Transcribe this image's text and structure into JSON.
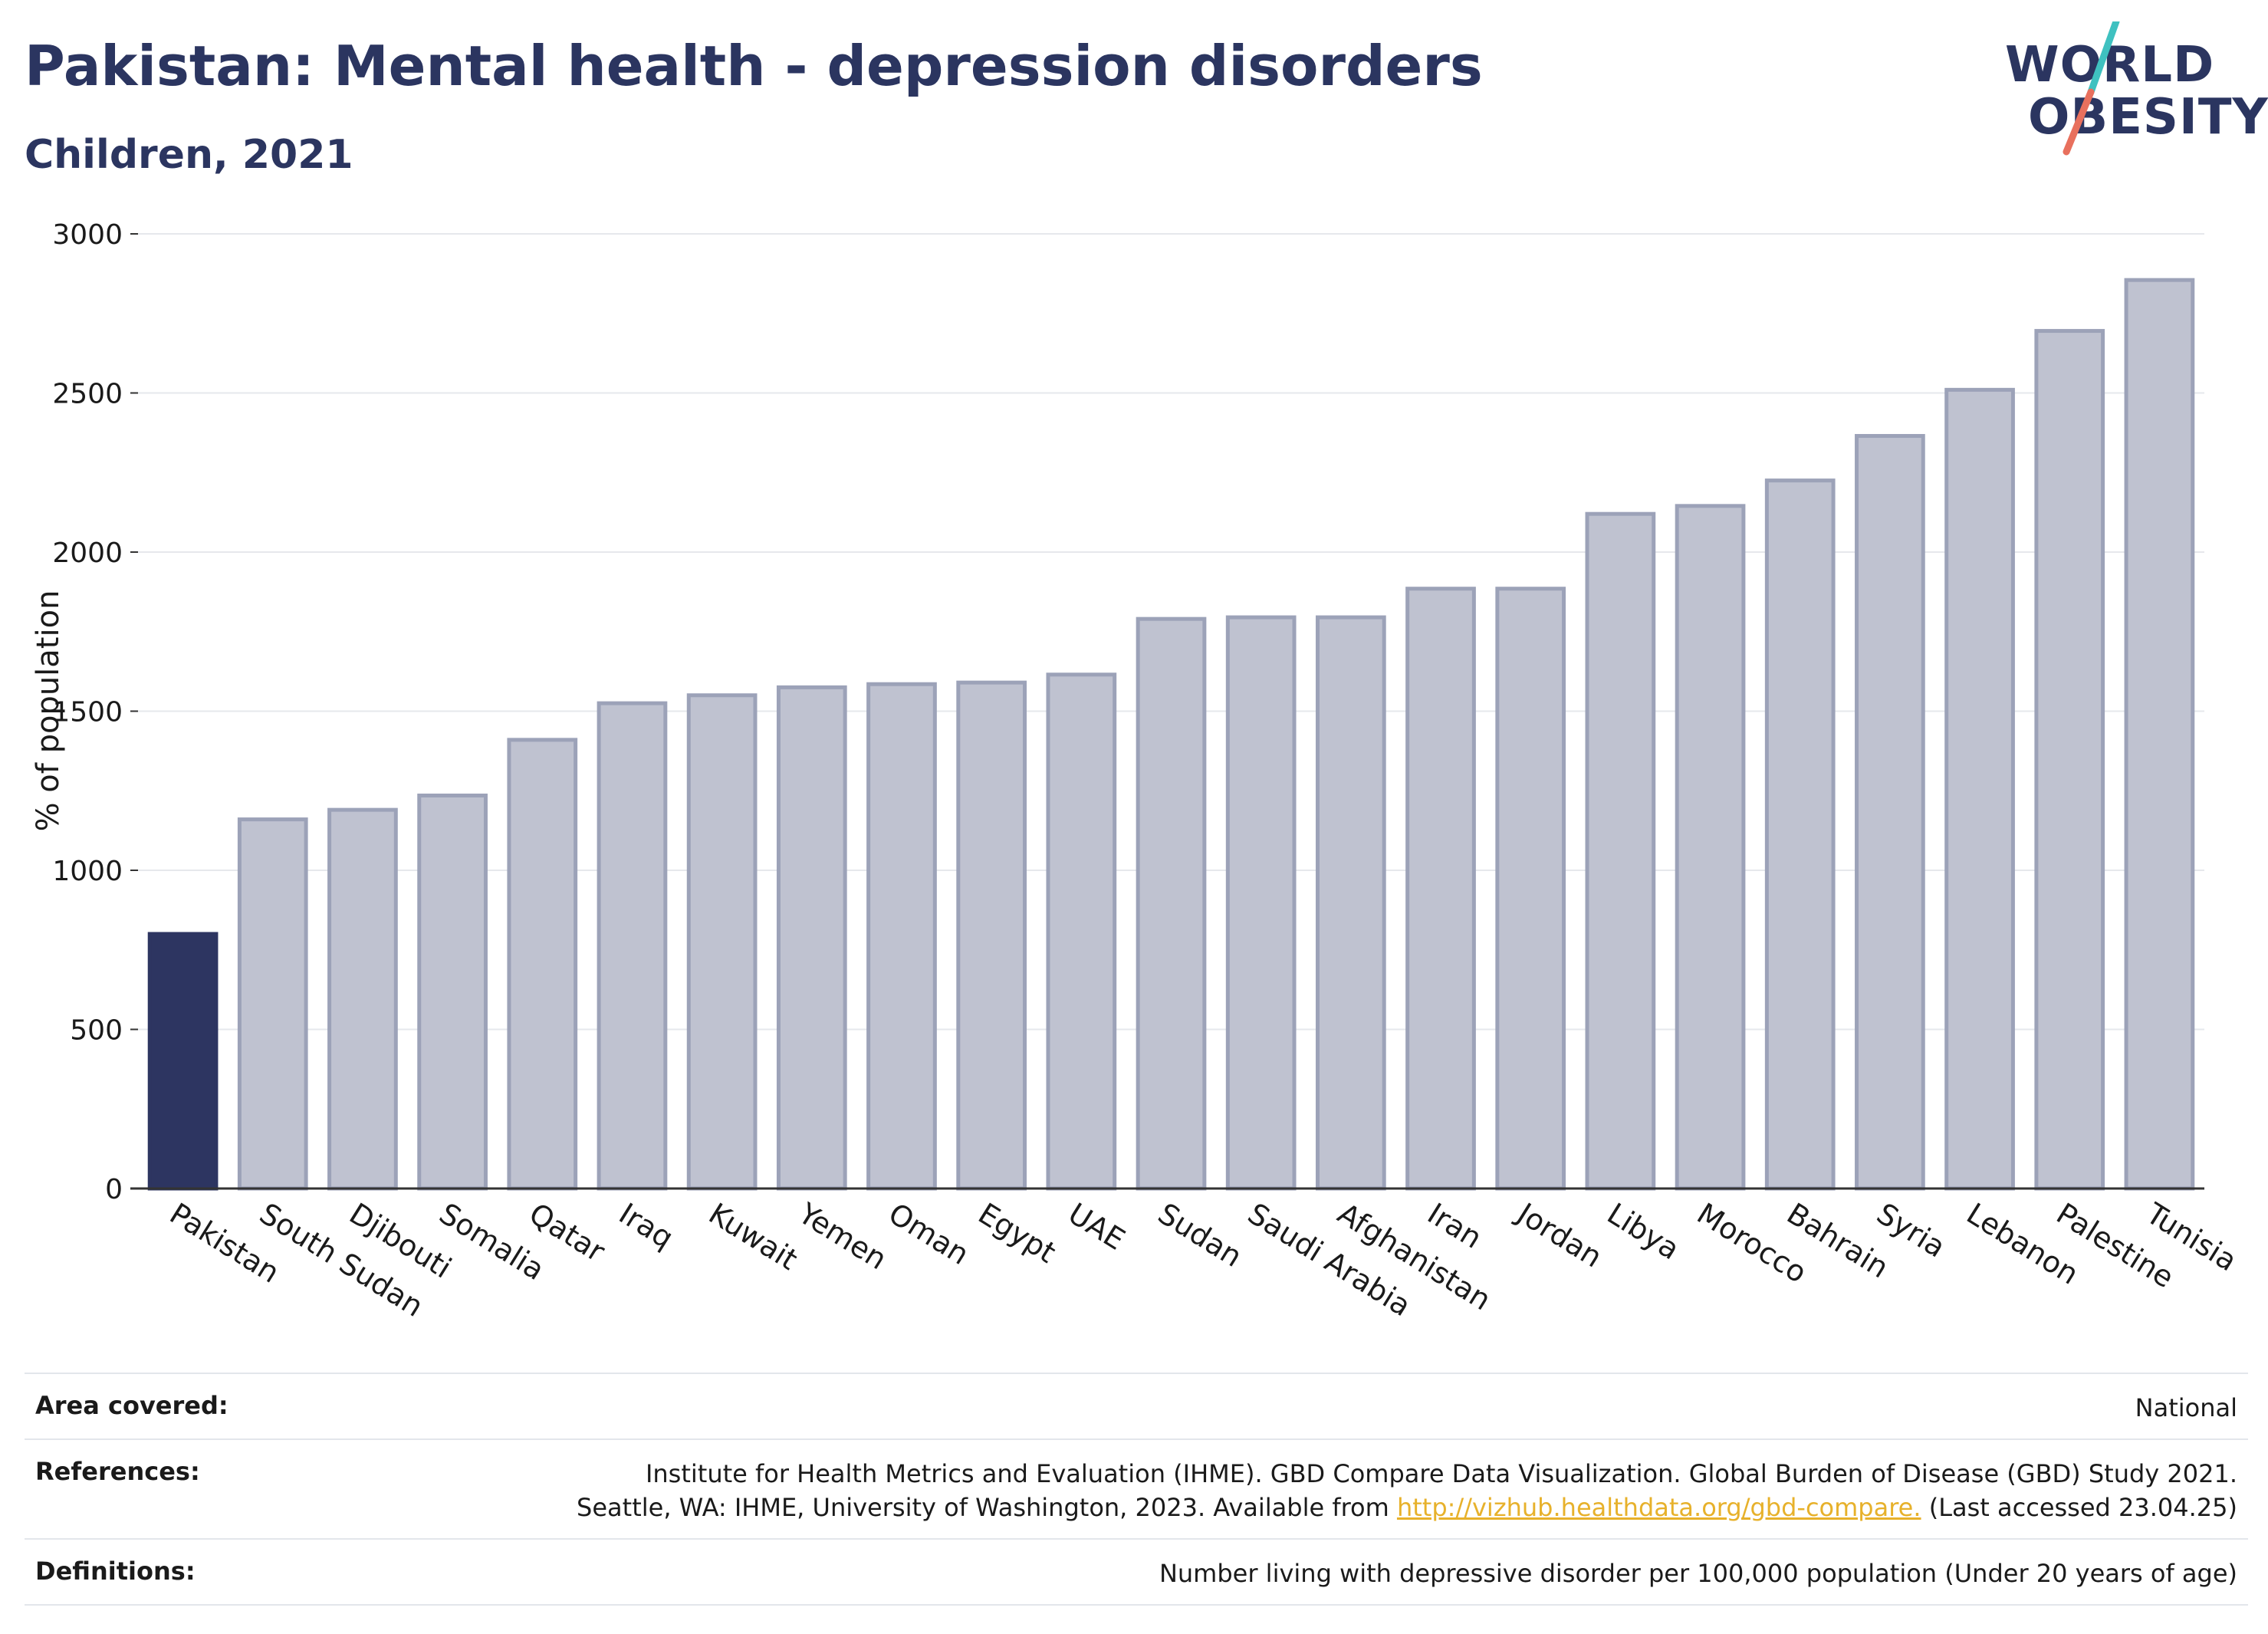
{
  "header": {
    "title": "Pakistan: Mental health - depression disorders",
    "subtitle": "Children, 2021"
  },
  "logo": {
    "line1": "WORLD",
    "line2": "OBESITY"
  },
  "chart_data": {
    "type": "bar",
    "ylabel": "% of population",
    "xlabel": "",
    "ylim": [
      0,
      3000
    ],
    "yticks": [
      0,
      500,
      1000,
      1500,
      2000,
      2500,
      3000
    ],
    "grid": true,
    "categories": [
      "Pakistan",
      "South Sudan",
      "Djibouti",
      "Somalia",
      "Qatar",
      "Iraq",
      "Kuwait",
      "Yemen",
      "Oman",
      "Egypt",
      "UAE",
      "Sudan",
      "Saudi Arabia",
      "Afghanistan",
      "Iran",
      "Jordan",
      "Libya",
      "Morocco",
      "Bahrain",
      "Syria",
      "Lebanon",
      "Palestine",
      "Tunisia"
    ],
    "values": [
      800,
      1160,
      1190,
      1235,
      1410,
      1525,
      1550,
      1575,
      1585,
      1590,
      1615,
      1790,
      1795,
      1795,
      1885,
      1885,
      2120,
      2145,
      2225,
      2365,
      2510,
      2695,
      2855
    ],
    "highlight": "Pakistan",
    "colors": {
      "highlight": "#2d3561",
      "other_fill": "#bfc2d0",
      "other_stroke": "#9ca2b8"
    }
  },
  "footer": {
    "area_label": "Area covered:",
    "area_value": "National",
    "references_label": "References:",
    "references_line1": "Institute for Health Metrics and Evaluation (IHME). GBD Compare Data Visualization. Global Burden of Disease (GBD) Study 2021.",
    "references_line2_pre": "Seattle, WA: IHME, University of Washington, 2023. Available from ",
    "references_link": "http://vizhub.healthdata.org/gbd-compare.",
    "references_line2_post": " (Last accessed 23.04.25)",
    "definitions_label": "Definitions:",
    "definitions_value": "Number living with depressive disorder per 100,000 population (Under 20 years of age)"
  }
}
